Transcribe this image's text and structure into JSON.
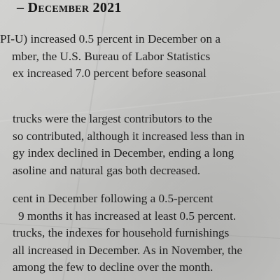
{
  "document": {
    "heading": "– December 2021",
    "paragraphs": [
      {
        "lines": [
          "PI-U) increased 0.5 percent in December on a",
          "mber, the U.S. Bureau of Labor Statistics",
          "ex increased 7.0 percent before seasonal"
        ]
      },
      {
        "lines": [
          "trucks were the largest contributors to the",
          "so contributed, although it increased less than in",
          "gy index declined in December, ending a long",
          "asoline and natural gas both decreased."
        ]
      },
      {
        "lines": [
          "cent in December following a 0.5-percent",
          "9 months it has increased at least 0.5 percent.",
          "trucks, the indexes for household furnishings",
          "all increased in December. As in November, the",
          "among the few to decline over the month."
        ]
      }
    ]
  }
}
